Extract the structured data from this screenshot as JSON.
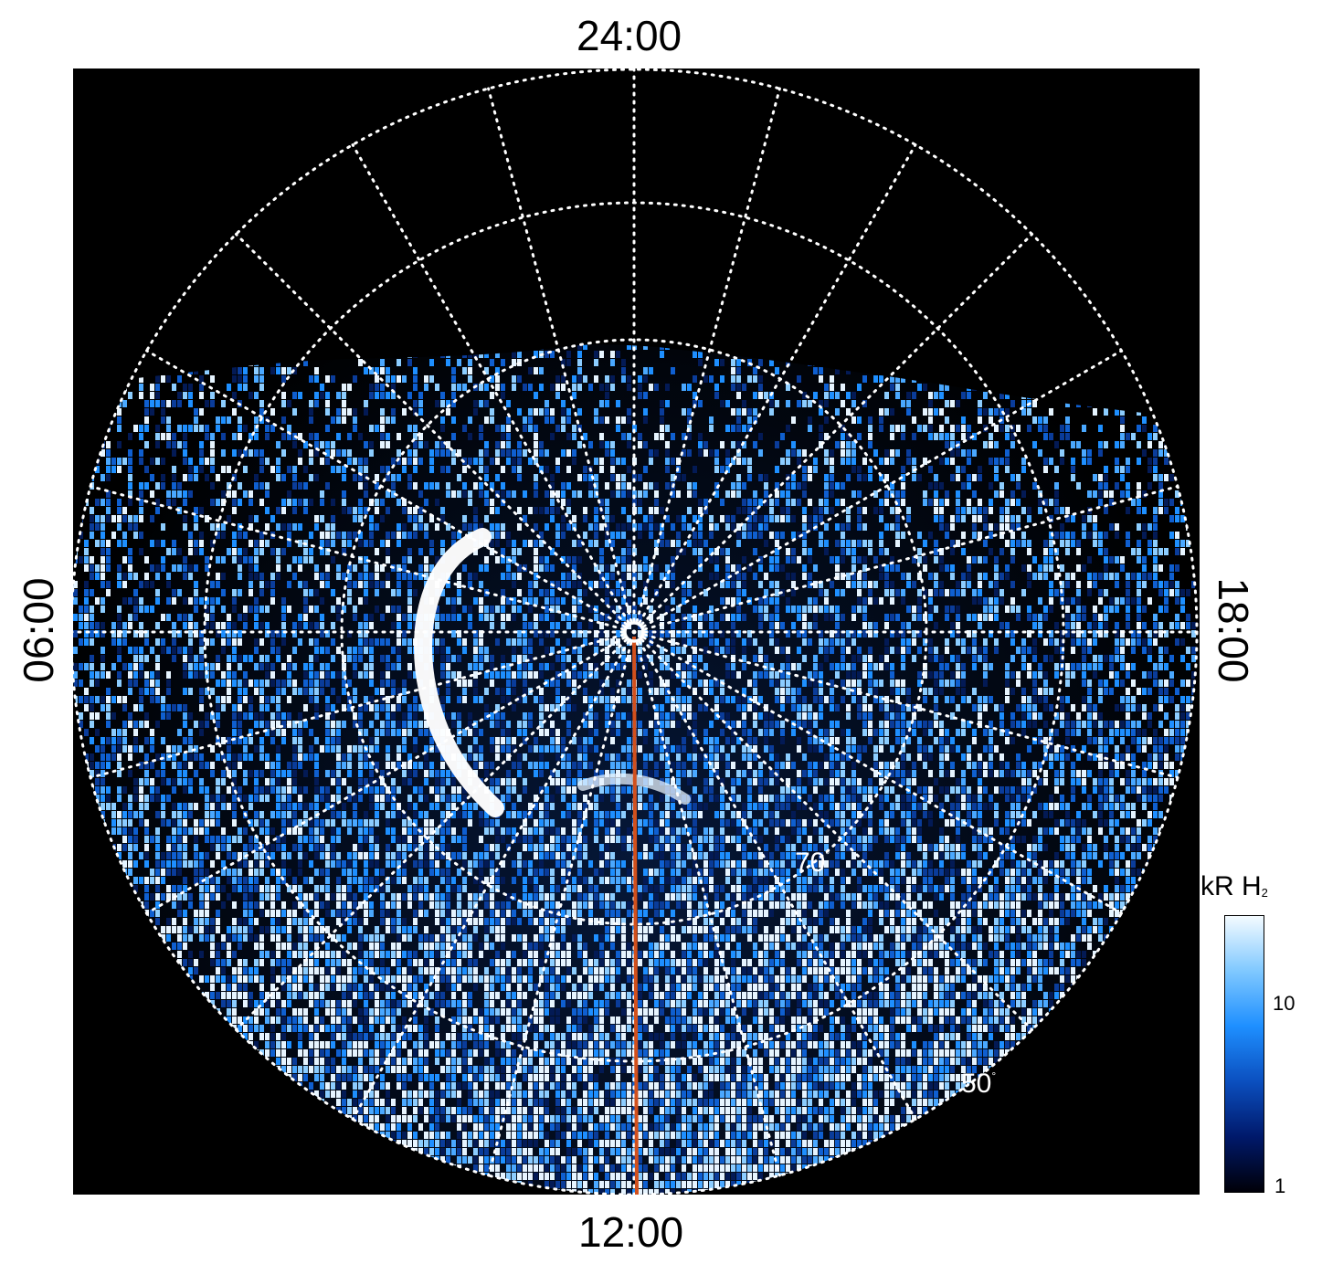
{
  "figure": {
    "local_time_labels": {
      "top": "24:00",
      "bottom": "12:00",
      "left": "06:00",
      "right": "18:00"
    },
    "latitude_labels": {
      "inner": "70",
      "outer": "50",
      "degree_symbol": "°"
    },
    "colorbar": {
      "unit_main": "kR H",
      "unit_sub": "2",
      "ticks": [
        "10",
        "1"
      ],
      "colors": [
        "#000008",
        "#00196b",
        "#0b4fbf",
        "#1e8fff",
        "#7fc8ff",
        "#f4fbff"
      ]
    },
    "colors": {
      "background": "#000000",
      "grid": "#ffffff",
      "meridian_line": "#d2501c",
      "arc": "#ffffff"
    },
    "projection": "polar stereographic, north-up with 24:00 at top",
    "grid": true
  }
}
